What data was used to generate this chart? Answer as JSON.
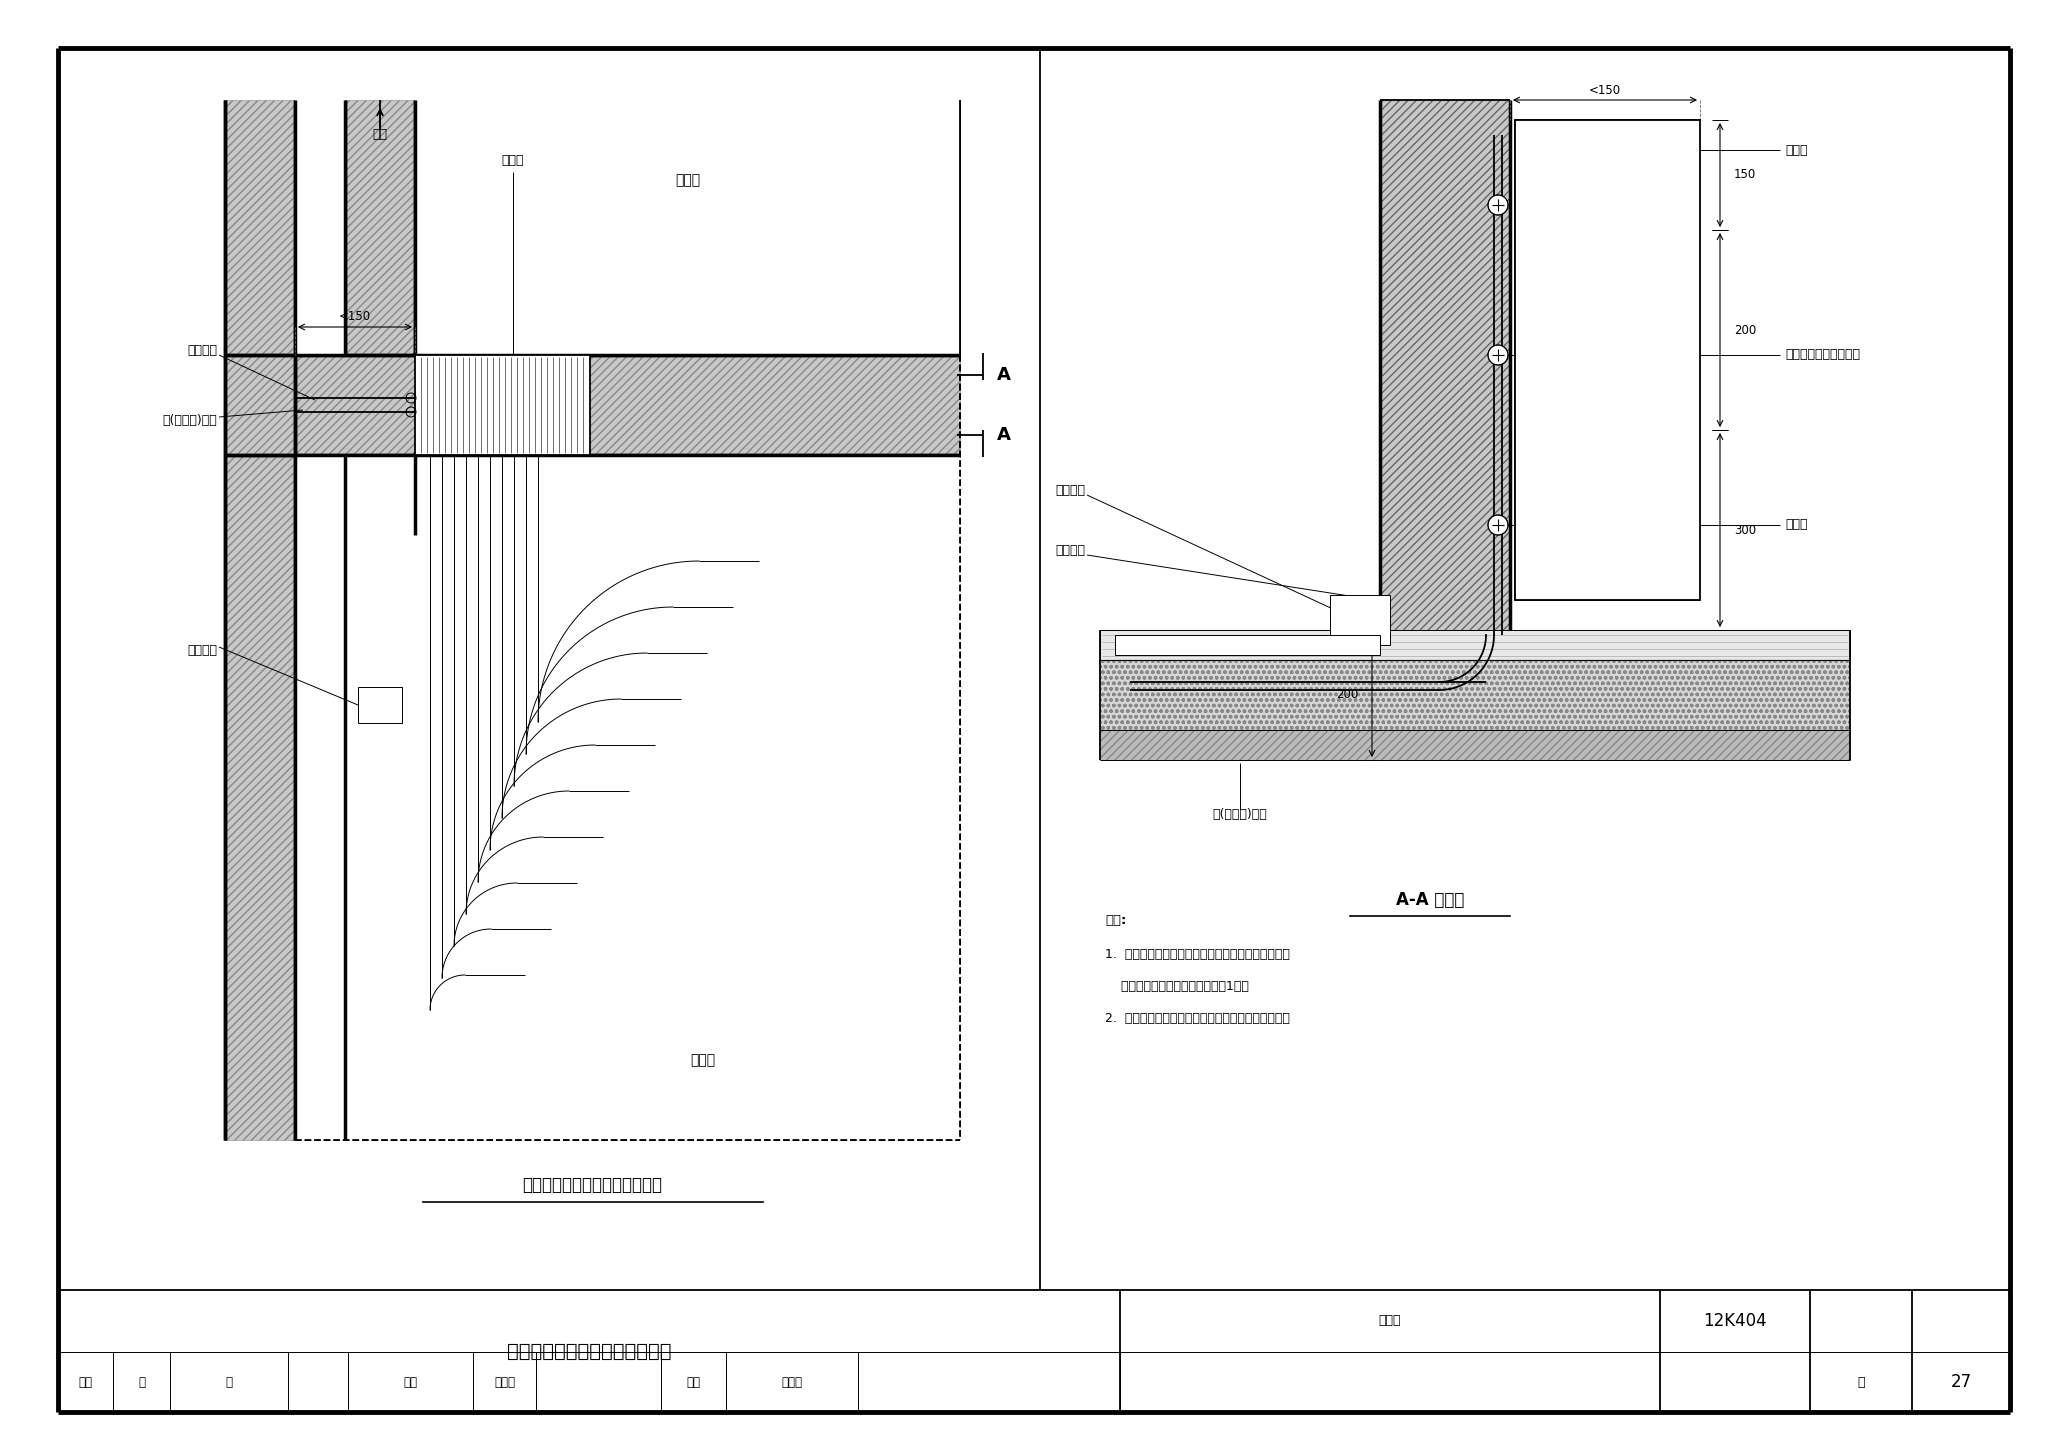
{
  "bg_color": "#ffffff",
  "lc": "#000000",
  "title_main": "分集水器后面出管穿墙安装做法",
  "title_section": "A-A 剖面图",
  "figure_label_left": "分集水器后面出管穿墙安装做法",
  "atlas_no": "12K404",
  "atlas_label": "图集号",
  "page_no": "27",
  "page_label": "页",
  "note_title": "说明:",
  "notes": [
    "1.  分水器、集水器后面出管穿墙安装应在内墙开洞，",
    "    预埋钢套管，其管径比加热管大1号。",
    "2.  钢套管后面加热管密集处应设塑料管或波纹套管。"
  ],
  "label_room1": "房间一",
  "label_room2": "房间二",
  "label_supply": "供回水管",
  "label_hidden_box_l": "暗装箱",
  "label_steel_sleeve_l": "钢(硬塑料)套管",
  "label_flex_sleeve_l": "柔性套管",
  "label_inner_wall": "内墙",
  "label_A": "A",
  "label_hidden_box_r": "暗装箱",
  "label_black_pipe": "黑色塑料管或波纹套管",
  "label_wall_hole": "内墙开洞",
  "label_flex_sleeve_r": "柔性套管",
  "label_steel_sleeve_r": "钢(硬塑料)套管",
  "label_elbow": "弯管卡",
  "dim_lt150": "<150",
  "dim_150": "150",
  "dim_200": "200",
  "dim_300": "300"
}
